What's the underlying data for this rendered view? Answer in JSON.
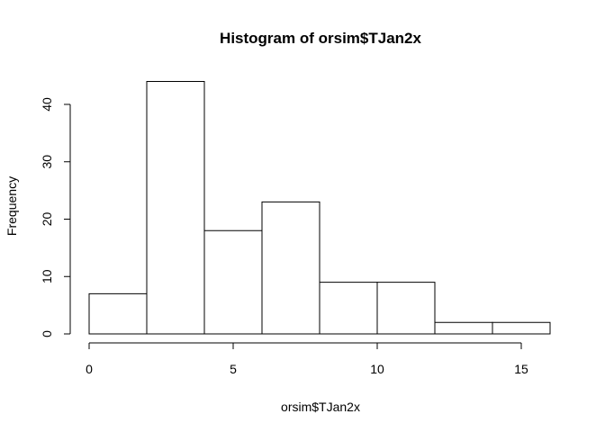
{
  "chart_data": {
    "type": "bar",
    "title": "Histogram of orsim$TJan2x",
    "xlabel": "orsim$TJan2x",
    "ylabel": "Frequency",
    "bins": [
      [
        0,
        2
      ],
      [
        2,
        4
      ],
      [
        4,
        6
      ],
      [
        6,
        8
      ],
      [
        8,
        10
      ],
      [
        10,
        12
      ],
      [
        12,
        14
      ],
      [
        14,
        16
      ]
    ],
    "values": [
      7,
      44,
      18,
      23,
      9,
      9,
      2,
      2
    ],
    "xlim": [
      0,
      16
    ],
    "ylim": [
      0,
      45
    ],
    "xticks": [
      0,
      5,
      10,
      15
    ],
    "yticks": [
      0,
      10,
      20,
      30,
      40
    ],
    "grid": false,
    "colors": {
      "bar_fill": "#ffffff",
      "bar_stroke": "#000000"
    }
  }
}
